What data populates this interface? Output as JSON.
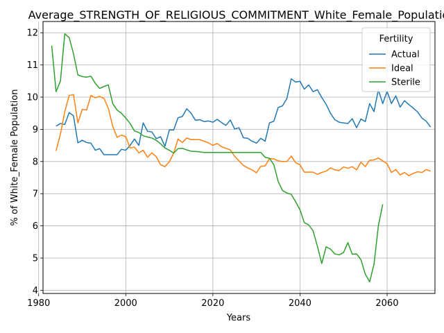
{
  "chart_data": {
    "type": "line",
    "title": "Average_STRENGTH_OF_RELIGIOUS_COMMITMENT_White_Female_Population",
    "xlabel": "Years",
    "ylabel": "% of White_Female Population",
    "xlim": [
      1981,
      2071
    ],
    "ylim": [
      3.9,
      12.35
    ],
    "xticks": [
      1980,
      2000,
      2020,
      2040,
      2060
    ],
    "yticks": [
      4,
      5,
      6,
      7,
      8,
      9,
      10,
      11,
      12
    ],
    "grid": true,
    "legend": {
      "title": "Fertility",
      "placement": "top-right"
    },
    "series": [
      {
        "name": "Actual",
        "color": "#1f77b4",
        "x": [
          1984,
          1985,
          1986,
          1987,
          1988,
          1989,
          1990,
          1991,
          1992,
          1993,
          1994,
          1995,
          1996,
          1997,
          1998,
          1999,
          2000,
          2001,
          2002,
          2003,
          2004,
          2005,
          2006,
          2007,
          2008,
          2009,
          2010,
          2011,
          2012,
          2013,
          2014,
          2015,
          2016,
          2017,
          2018,
          2019,
          2020,
          2021,
          2022,
          2023,
          2024,
          2025,
          2026,
          2027,
          2028,
          2029,
          2030,
          2031,
          2032,
          2033,
          2034,
          2035,
          2036,
          2037,
          2038,
          2039,
          2040,
          2041,
          2042,
          2043,
          2044,
          2045,
          2046,
          2047,
          2048,
          2049,
          2050,
          2051,
          2052,
          2053,
          2054,
          2055,
          2056,
          2057,
          2058,
          2059,
          2060,
          2061,
          2062,
          2063,
          2064,
          2065,
          2066,
          2067,
          2068,
          2069,
          2070
        ],
        "values": [
          9.1,
          9.18,
          9.15,
          9.52,
          9.42,
          8.58,
          8.66,
          8.59,
          8.57,
          8.35,
          8.4,
          8.21,
          8.21,
          8.21,
          8.21,
          8.38,
          8.35,
          8.5,
          8.7,
          8.5,
          9.2,
          8.94,
          8.92,
          8.71,
          8.77,
          8.47,
          8.98,
          8.98,
          9.36,
          9.4,
          9.64,
          9.5,
          9.28,
          9.3,
          9.24,
          9.26,
          9.22,
          9.31,
          9.21,
          9.12,
          9.29,
          9.01,
          9.05,
          8.74,
          8.72,
          8.63,
          8.57,
          8.72,
          8.63,
          9.2,
          9.25,
          9.68,
          9.73,
          9.96,
          10.57,
          10.47,
          10.49,
          10.25,
          10.38,
          10.17,
          10.23,
          9.99,
          9.78,
          9.5,
          9.3,
          9.22,
          9.2,
          9.18,
          9.33,
          9.05,
          9.32,
          9.24,
          9.8,
          9.55,
          10.23,
          9.8,
          10.18,
          9.8,
          10.04,
          9.69,
          9.89,
          9.77,
          9.66,
          9.54,
          9.35,
          9.25,
          9.07
        ]
      },
      {
        "name": "Ideal",
        "color": "#ff7f0e",
        "x": [
          1984,
          1985,
          1986,
          1987,
          1988,
          1989,
          1990,
          1991,
          1992,
          1993,
          1994,
          1995,
          1996,
          1997,
          1998,
          1999,
          2000,
          2001,
          2002,
          2003,
          2004,
          2005,
          2006,
          2007,
          2008,
          2009,
          2010,
          2011,
          2012,
          2013,
          2014,
          2015,
          2016,
          2017,
          2018,
          2019,
          2020,
          2021,
          2022,
          2023,
          2024,
          2025,
          2026,
          2027,
          2028,
          2029,
          2030,
          2031,
          2032,
          2033,
          2034,
          2035,
          2036,
          2037,
          2038,
          2039,
          2040,
          2041,
          2042,
          2043,
          2044,
          2045,
          2046,
          2047,
          2048,
          2049,
          2050,
          2051,
          2052,
          2053,
          2054,
          2055,
          2056,
          2057,
          2058,
          2059,
          2060,
          2061,
          2062,
          2063,
          2064,
          2065,
          2066,
          2067,
          2068,
          2069,
          2070
        ],
        "values": [
          8.33,
          8.85,
          9.55,
          10.05,
          10.08,
          9.2,
          9.62,
          9.6,
          10.05,
          9.98,
          10.02,
          9.96,
          9.65,
          9.1,
          8.75,
          8.82,
          8.77,
          8.42,
          8.45,
          8.27,
          8.35,
          8.13,
          8.27,
          8.15,
          7.9,
          7.84,
          7.99,
          8.26,
          8.7,
          8.59,
          8.73,
          8.68,
          8.68,
          8.68,
          8.63,
          8.58,
          8.5,
          8.56,
          8.46,
          8.41,
          8.36,
          8.16,
          8.02,
          7.88,
          7.8,
          7.74,
          7.65,
          7.85,
          7.86,
          8.09,
          8.08,
          8.02,
          8.0,
          8.0,
          8.17,
          7.96,
          7.9,
          7.67,
          7.67,
          7.67,
          7.6,
          7.66,
          7.7,
          7.8,
          7.74,
          7.72,
          7.83,
          7.79,
          7.84,
          7.74,
          7.98,
          7.84,
          8.04,
          8.05,
          8.11,
          8.02,
          7.93,
          7.66,
          7.75,
          7.58,
          7.66,
          7.56,
          7.63,
          7.68,
          7.66,
          7.75,
          7.7
        ]
      },
      {
        "name": "Sterile",
        "color": "#2ca02c",
        "x": [
          1983,
          1984,
          1985,
          1986,
          1987,
          1988,
          1989,
          1990,
          1991,
          1992,
          1993,
          1994,
          1995,
          1996,
          1997,
          1998,
          1999,
          2000,
          2001,
          2002,
          2003,
          2004,
          2005,
          2006,
          2007,
          2008,
          2009,
          2010,
          2011,
          2012,
          2013,
          2014,
          2015,
          2016,
          2017,
          2018,
          2019,
          2020,
          2021,
          2022,
          2023,
          2024,
          2025,
          2026,
          2027,
          2028,
          2029,
          2030,
          2031,
          2032,
          2033,
          2034,
          2035,
          2036,
          2037,
          2038,
          2039,
          2040,
          2041,
          2042,
          2043,
          2044,
          2045,
          2046,
          2047,
          2048,
          2049,
          2050,
          2051,
          2052,
          2053,
          2054,
          2055,
          2056,
          2057,
          2058,
          2059
        ],
        "values": [
          11.6,
          10.17,
          10.5,
          11.97,
          11.85,
          11.35,
          10.69,
          10.64,
          10.62,
          10.65,
          10.43,
          10.27,
          10.33,
          10.38,
          9.8,
          9.6,
          9.5,
          9.35,
          9.18,
          8.95,
          8.9,
          8.8,
          8.76,
          8.73,
          8.66,
          8.55,
          8.42,
          8.35,
          8.26,
          8.4,
          8.41,
          8.36,
          8.32,
          8.31,
          8.3,
          8.28,
          8.28,
          8.28,
          8.28,
          8.28,
          8.28,
          8.28,
          8.28,
          8.28,
          8.28,
          8.28,
          8.28,
          8.28,
          8.28,
          8.13,
          8.1,
          7.9,
          7.38,
          7.1,
          7.02,
          6.98,
          6.75,
          6.5,
          6.1,
          6.03,
          5.85,
          5.37,
          4.83,
          5.35,
          5.28,
          5.13,
          5.1,
          5.17,
          5.48,
          5.12,
          5.13,
          4.95,
          4.5,
          4.26,
          4.81,
          6.0,
          6.67
        ]
      }
    ]
  }
}
